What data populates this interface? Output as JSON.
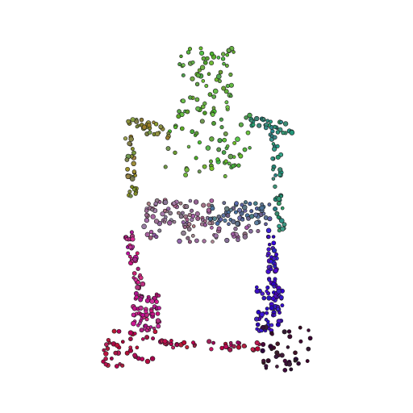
{
  "image": {
    "background": "#ffffff",
    "point_outline": "#1a1a1a"
  },
  "palette": {
    "top_green": "#5fae3c",
    "upper_olive": "#8a8f3a",
    "right_teal": "#2f8f7a",
    "mid_mauve": "#9a6f94",
    "mid_slate": "#5a6f98",
    "left_magenta": "#c0208a",
    "right_blue": "#3a10c8",
    "bottom_crimson": "#b0104a",
    "bottom_dark": "#3a1030"
  }
}
